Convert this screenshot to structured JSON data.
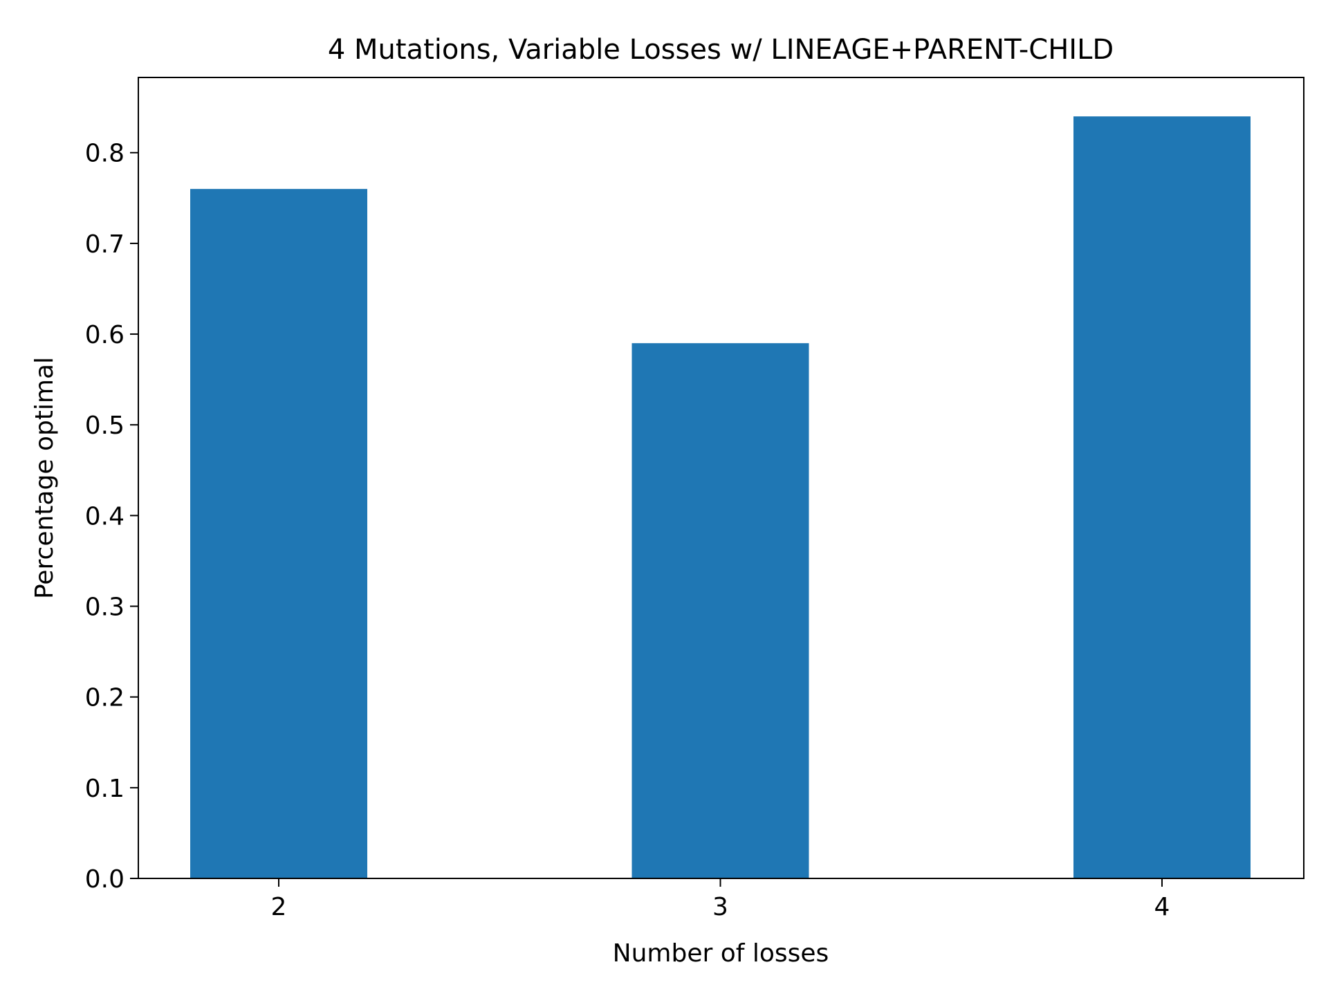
{
  "chart_data": {
    "type": "bar",
    "title": "4 Mutations, Variable Losses w/ LINEAGE+PARENT-CHILD",
    "xlabel": "Number of losses",
    "ylabel": "Percentage optimal",
    "categories": [
      "2",
      "3",
      "4"
    ],
    "values": [
      0.76,
      0.59,
      0.84
    ],
    "ylim": [
      0,
      0.8829
    ],
    "yticks": [
      "0.0",
      "0.1",
      "0.2",
      "0.3",
      "0.4",
      "0.5",
      "0.6",
      "0.7",
      "0.8"
    ],
    "grid": false,
    "bar_color": "#1f77b4"
  }
}
